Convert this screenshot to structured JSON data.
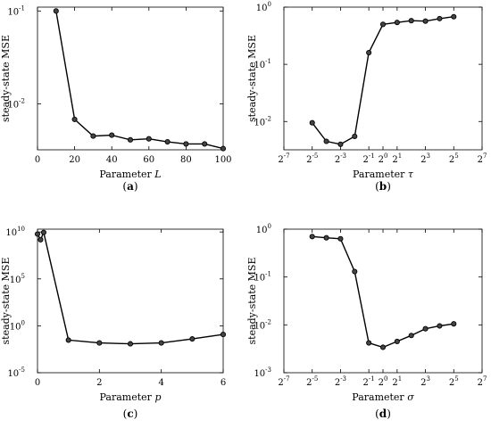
{
  "chart_data": [
    {
      "type": "line",
      "caption": "(a)",
      "xlabel": "Parameter",
      "xsym": "L",
      "ylabel": "steady-state MSE",
      "yscale": "log",
      "xlim": [
        0,
        100
      ],
      "ylim": [
        0.0032,
        0.11
      ],
      "xticks": [
        0,
        20,
        40,
        60,
        80,
        100
      ],
      "xtick_labels": [
        "0",
        "20",
        "40",
        "60",
        "80",
        "100"
      ],
      "yticks": [
        0.01,
        0.1
      ],
      "ytick_labels": [
        {
          "b": "10",
          "e": "-2"
        },
        {
          "b": "10",
          "e": "-1"
        }
      ],
      "grid": false,
      "series": [
        {
          "x": [
            10,
            20,
            30,
            40,
            50,
            60,
            70,
            80,
            90,
            100
          ],
          "y": [
            0.1,
            0.0068,
            0.0045,
            0.0046,
            0.0041,
            0.0042,
            0.0039,
            0.0037,
            0.0037,
            0.0033
          ]
        }
      ]
    },
    {
      "type": "line",
      "caption": "(b)",
      "xlabel": "Parameter",
      "xsym": "τ",
      "ylabel": "steady-state MSE",
      "yscale": "log",
      "xscale": "log2",
      "xlim": [
        -7,
        7
      ],
      "ylim": [
        0.0032,
        1
      ],
      "xticks": [
        -7,
        -5,
        -3,
        -1,
        0,
        1,
        3,
        5,
        7
      ],
      "xtick_labels": [
        {
          "b": "2",
          "e": "-7"
        },
        {
          "b": "2",
          "e": "-5"
        },
        {
          "b": "2",
          "e": "-3"
        },
        {
          "b": "2",
          "e": "-1"
        },
        {
          "b": "2",
          "e": "0"
        },
        {
          "b": "2",
          "e": "1"
        },
        {
          "b": "2",
          "e": "3"
        },
        {
          "b": "2",
          "e": "5"
        },
        {
          "b": "2",
          "e": "7"
        }
      ],
      "yticks": [
        0.01,
        0.1,
        1
      ],
      "ytick_labels": [
        {
          "b": "10",
          "e": "-2"
        },
        {
          "b": "10",
          "e": "-1"
        },
        {
          "b": "10",
          "e": "0"
        }
      ],
      "grid": false,
      "series": [
        {
          "x": [
            -5,
            -4,
            -3,
            -2,
            -1,
            0,
            1,
            2,
            3,
            4,
            5
          ],
          "y": [
            0.0095,
            0.0045,
            0.004,
            0.0055,
            0.16,
            0.5,
            0.54,
            0.58,
            0.57,
            0.63,
            0.68
          ]
        }
      ]
    },
    {
      "type": "line",
      "caption": "(c)",
      "xlabel": "Parameter",
      "xsym": "p",
      "ylabel": "steady-state MSE",
      "yscale": "log",
      "xlim": [
        0,
        6
      ],
      "ylim": [
        1e-05,
        20000000000
      ],
      "xticks": [
        0,
        2,
        4,
        6
      ],
      "xtick_labels": [
        "0",
        "2",
        "4",
        "6"
      ],
      "yticks": [
        1e-05,
        1,
        100000,
        10000000000
      ],
      "ytick_labels": [
        {
          "b": "10",
          "e": "-5"
        },
        {
          "b": "10",
          "e": "0"
        },
        {
          "b": "10",
          "e": "5"
        },
        {
          "b": "10",
          "e": "10"
        }
      ],
      "grid": false,
      "series": [
        {
          "x": [
            0,
            0.1,
            0.2,
            1,
            2,
            3,
            4,
            5,
            6
          ],
          "y": [
            6000000000,
            1500000000,
            9000000000,
            0.03,
            0.015,
            0.012,
            0.015,
            0.04,
            0.12
          ]
        }
      ]
    },
    {
      "type": "line",
      "caption": "(d)",
      "xlabel": "Parameter",
      "xsym": "σ",
      "ylabel": "steady-state MSE",
      "yscale": "log",
      "xscale": "log2",
      "xlim": [
        -7,
        7
      ],
      "ylim": [
        0.001,
        1
      ],
      "xticks": [
        -7,
        -5,
        -3,
        -1,
        0,
        1,
        3,
        5,
        7
      ],
      "xtick_labels": [
        {
          "b": "2",
          "e": "-7"
        },
        {
          "b": "2",
          "e": "-5"
        },
        {
          "b": "2",
          "e": "-3"
        },
        {
          "b": "2",
          "e": "-1"
        },
        {
          "b": "2",
          "e": "0"
        },
        {
          "b": "2",
          "e": "1"
        },
        {
          "b": "2",
          "e": "3"
        },
        {
          "b": "2",
          "e": "5"
        },
        {
          "b": "2",
          "e": "7"
        }
      ],
      "yticks": [
        0.001,
        0.01,
        0.1,
        1
      ],
      "ytick_labels": [
        {
          "b": "10",
          "e": "-3"
        },
        {
          "b": "10",
          "e": "-2"
        },
        {
          "b": "10",
          "e": "-1"
        },
        {
          "b": "10",
          "e": "0"
        }
      ],
      "grid": false,
      "series": [
        {
          "x": [
            -5,
            -4,
            -3,
            -2,
            -1,
            0,
            1,
            2,
            3,
            4,
            5
          ],
          "y": [
            0.7,
            0.66,
            0.63,
            0.13,
            0.0042,
            0.0034,
            0.0045,
            0.006,
            0.0083,
            0.0095,
            0.0105
          ]
        }
      ]
    }
  ]
}
